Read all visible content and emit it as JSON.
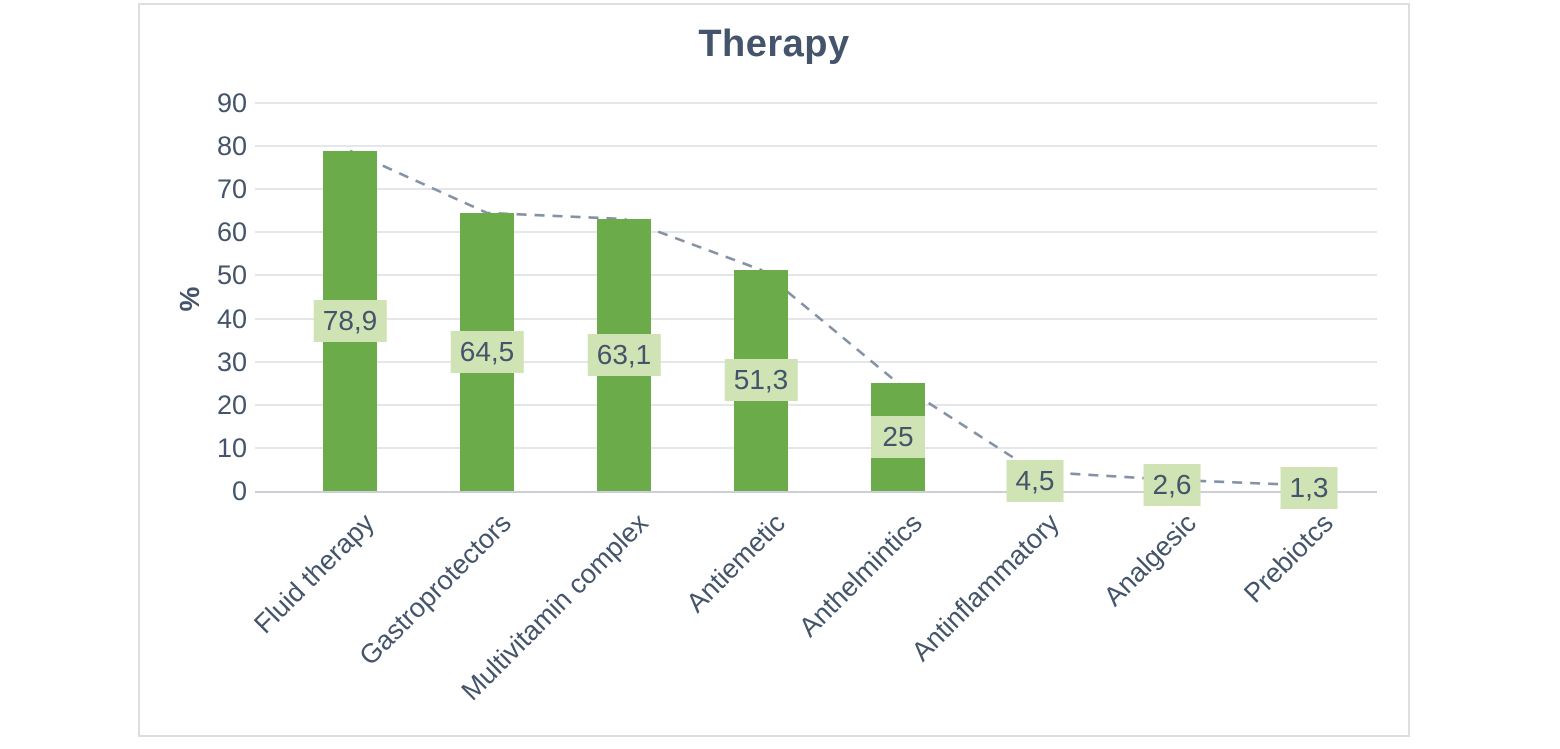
{
  "colors": {
    "bar_fill": "#6cab49",
    "value_label_bg": "#cfe3b4",
    "text": "#44546a",
    "gridline": "#e4e6ea",
    "axis_line": "#ccd0d6",
    "trend_line": "#8591a5",
    "frame_border": "#dcdee2"
  },
  "chart_data": {
    "type": "bar",
    "title": "Therapy",
    "xlabel": "",
    "ylabel": "%",
    "ylim": [
      0,
      90
    ],
    "yticks": [
      0,
      10,
      20,
      30,
      40,
      50,
      60,
      70,
      80,
      90
    ],
    "grid": true,
    "legend": false,
    "categories": [
      "Fluid therapy",
      "Gastroprotectors",
      "Multivitamin complex",
      "Antiemetic",
      "Anthelmintics",
      "Antinflammatory",
      "Analgesic",
      "Prebiotcs"
    ],
    "values": [
      78.9,
      64.5,
      63.1,
      51.3,
      25,
      4.5,
      2.6,
      1.3
    ],
    "value_labels": [
      "78,9",
      "64,5",
      "63,1",
      "51,3",
      "25",
      "4,5",
      "2,6",
      "1,3"
    ],
    "series": [
      {
        "name": "bars",
        "type": "bar",
        "values": [
          78.9,
          64.5,
          63.1,
          51.3,
          25,
          4.5,
          2.6,
          1.3
        ]
      },
      {
        "name": "trend",
        "type": "line",
        "style": "dashed",
        "values": [
          78.9,
          64.5,
          63.1,
          51.3,
          25,
          4.5,
          2.6,
          1.3
        ]
      }
    ],
    "layout": {
      "x_tick_rotation_deg": 45,
      "data_label_position": "center-of-bar",
      "legend_position": "none"
    }
  }
}
